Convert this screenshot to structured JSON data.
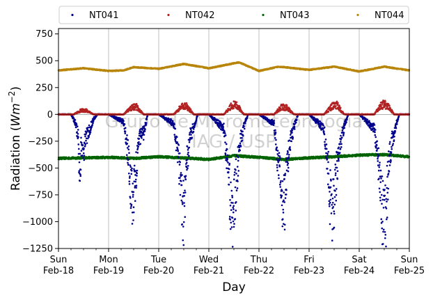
{
  "chart_data": {
    "type": "scatter",
    "xlabel": "Day",
    "ylabel_main": "Radiation (",
    "ylabel_unit": "Wm",
    "ylabel_exp": "−2",
    "ylabel_close": ")",
    "ylim": [
      -1250,
      800
    ],
    "yticks": [
      {
        "value": 750,
        "label": "750"
      },
      {
        "value": 500,
        "label": "500"
      },
      {
        "value": 250,
        "label": "250"
      },
      {
        "value": 0,
        "label": "0"
      },
      {
        "value": -250,
        "label": "−250"
      },
      {
        "value": -500,
        "label": "−500"
      },
      {
        "value": -750,
        "label": "−750"
      },
      {
        "value": -1000,
        "label": "−1000"
      },
      {
        "value": -1250,
        "label": "−1250"
      }
    ],
    "xlim_days": [
      0,
      7
    ],
    "xticks": [
      {
        "day": 0,
        "line1": "Sun",
        "line2": "Feb-18"
      },
      {
        "day": 1,
        "line1": "Mon",
        "line2": "Feb-19"
      },
      {
        "day": 2,
        "line1": "Tue",
        "line2": "Feb-20"
      },
      {
        "day": 3,
        "line1": "Wed",
        "line2": "Feb-21"
      },
      {
        "day": 4,
        "line1": "Thu",
        "line2": "Feb-22"
      },
      {
        "day": 5,
        "line1": "Fri",
        "line2": "Feb-23"
      },
      {
        "day": 6,
        "line1": "Sat",
        "line2": "Feb-24"
      },
      {
        "day": 7,
        "line1": "Sun",
        "line2": "Feb-25"
      }
    ],
    "grid": "vertical",
    "legend_position": "top",
    "watermark_line1": "Grupo de Micrometeorologia",
    "watermark_line2": "IAG / USP",
    "series": [
      {
        "name": "NT041",
        "color": "#00008b",
        "values": [
          {
            "day": 0.0,
            "y": 0
          },
          {
            "day": 0.25,
            "y": 0
          },
          {
            "day": 0.33,
            "y": -80
          },
          {
            "day": 0.4,
            "y": -250
          },
          {
            "day": 0.42,
            "y": -700
          },
          {
            "day": 0.46,
            "y": -300
          },
          {
            "day": 0.5,
            "y": -400
          },
          {
            "day": 0.55,
            "y": -250
          },
          {
            "day": 0.6,
            "y": -200
          },
          {
            "day": 0.7,
            "y": -50
          },
          {
            "day": 0.78,
            "y": 0
          },
          {
            "day": 1.0,
            "y": 0
          },
          {
            "day": 1.3,
            "y": -80
          },
          {
            "day": 1.4,
            "y": -450
          },
          {
            "day": 1.44,
            "y": -850
          },
          {
            "day": 1.5,
            "y": -950
          },
          {
            "day": 1.55,
            "y": -600
          },
          {
            "day": 1.6,
            "y": -250
          },
          {
            "day": 1.7,
            "y": -200
          },
          {
            "day": 1.78,
            "y": 0
          },
          {
            "day": 2.0,
            "y": 0
          },
          {
            "day": 2.3,
            "y": -100
          },
          {
            "day": 2.4,
            "y": -500
          },
          {
            "day": 2.45,
            "y": -800
          },
          {
            "day": 2.5,
            "y": -1100
          },
          {
            "day": 2.55,
            "y": -600
          },
          {
            "day": 2.62,
            "y": -250
          },
          {
            "day": 2.72,
            "y": -100
          },
          {
            "day": 2.78,
            "y": 0
          },
          {
            "day": 3.0,
            "y": 0
          },
          {
            "day": 3.3,
            "y": -150
          },
          {
            "day": 3.4,
            "y": -700
          },
          {
            "day": 3.45,
            "y": -1100
          },
          {
            "day": 3.5,
            "y": -1000
          },
          {
            "day": 3.55,
            "y": -700
          },
          {
            "day": 3.62,
            "y": -300
          },
          {
            "day": 3.72,
            "y": -100
          },
          {
            "day": 3.78,
            "y": 0
          },
          {
            "day": 4.0,
            "y": 0
          },
          {
            "day": 4.3,
            "y": -100
          },
          {
            "day": 4.38,
            "y": -500
          },
          {
            "day": 4.45,
            "y": -800
          },
          {
            "day": 4.5,
            "y": -1020
          },
          {
            "day": 4.55,
            "y": -600
          },
          {
            "day": 4.62,
            "y": -300
          },
          {
            "day": 4.72,
            "y": -100
          },
          {
            "day": 4.78,
            "y": 0
          },
          {
            "day": 5.0,
            "y": 0
          },
          {
            "day": 5.3,
            "y": -150
          },
          {
            "day": 5.4,
            "y": -700
          },
          {
            "day": 5.45,
            "y": -1200
          },
          {
            "day": 5.5,
            "y": -900
          },
          {
            "day": 5.55,
            "y": -600
          },
          {
            "day": 5.62,
            "y": -300
          },
          {
            "day": 5.72,
            "y": -100
          },
          {
            "day": 5.78,
            "y": 0
          },
          {
            "day": 6.0,
            "y": 0
          },
          {
            "day": 6.3,
            "y": -150
          },
          {
            "day": 6.4,
            "y": -600
          },
          {
            "day": 6.45,
            "y": -1000
          },
          {
            "day": 6.52,
            "y": -1200
          },
          {
            "day": 6.58,
            "y": -600
          },
          {
            "day": 6.65,
            "y": -300
          },
          {
            "day": 6.74,
            "y": -100
          },
          {
            "day": 6.8,
            "y": 0
          },
          {
            "day": 7.0,
            "y": 0
          }
        ]
      },
      {
        "name": "NT042",
        "color": "#b22222",
        "values": [
          {
            "day": 0.0,
            "y": 0
          },
          {
            "day": 0.3,
            "y": 0
          },
          {
            "day": 0.45,
            "y": 40
          },
          {
            "day": 0.55,
            "y": 40
          },
          {
            "day": 0.7,
            "y": 0
          },
          {
            "day": 1.0,
            "y": 0
          },
          {
            "day": 1.3,
            "y": 0
          },
          {
            "day": 1.45,
            "y": 70
          },
          {
            "day": 1.55,
            "y": 80
          },
          {
            "day": 1.7,
            "y": 0
          },
          {
            "day": 2.0,
            "y": 0
          },
          {
            "day": 2.3,
            "y": 0
          },
          {
            "day": 2.45,
            "y": 80
          },
          {
            "day": 2.55,
            "y": 90
          },
          {
            "day": 2.7,
            "y": 0
          },
          {
            "day": 3.0,
            "y": 0
          },
          {
            "day": 3.3,
            "y": 0
          },
          {
            "day": 3.45,
            "y": 90
          },
          {
            "day": 3.55,
            "y": 100
          },
          {
            "day": 3.7,
            "y": 0
          },
          {
            "day": 4.0,
            "y": 0
          },
          {
            "day": 4.3,
            "y": 0
          },
          {
            "day": 4.45,
            "y": 80
          },
          {
            "day": 4.55,
            "y": 70
          },
          {
            "day": 4.7,
            "y": 0
          },
          {
            "day": 5.0,
            "y": 0
          },
          {
            "day": 5.3,
            "y": 0
          },
          {
            "day": 5.45,
            "y": 80
          },
          {
            "day": 5.55,
            "y": 100
          },
          {
            "day": 5.7,
            "y": 0
          },
          {
            "day": 6.0,
            "y": 0
          },
          {
            "day": 6.3,
            "y": 0
          },
          {
            "day": 6.45,
            "y": 100
          },
          {
            "day": 6.55,
            "y": 100
          },
          {
            "day": 6.7,
            "y": 0
          },
          {
            "day": 7.0,
            "y": 0
          }
        ]
      },
      {
        "name": "NT043",
        "color": "#006400",
        "values": [
          {
            "day": 0.0,
            "y": -410
          },
          {
            "day": 0.5,
            "y": -405
          },
          {
            "day": 1.0,
            "y": -400
          },
          {
            "day": 1.5,
            "y": -410
          },
          {
            "day": 2.0,
            "y": -395
          },
          {
            "day": 2.5,
            "y": -405
          },
          {
            "day": 3.0,
            "y": -420
          },
          {
            "day": 3.5,
            "y": -385
          },
          {
            "day": 4.0,
            "y": -400
          },
          {
            "day": 4.5,
            "y": -420
          },
          {
            "day": 5.0,
            "y": -405
          },
          {
            "day": 5.5,
            "y": -395
          },
          {
            "day": 6.0,
            "y": -380
          },
          {
            "day": 6.5,
            "y": -375
          },
          {
            "day": 7.0,
            "y": -395
          }
        ]
      },
      {
        "name": "NT044",
        "color": "#b8860b",
        "values": [
          {
            "day": 0.0,
            "y": 410
          },
          {
            "day": 0.5,
            "y": 430
          },
          {
            "day": 1.0,
            "y": 405
          },
          {
            "day": 1.3,
            "y": 410
          },
          {
            "day": 1.5,
            "y": 440
          },
          {
            "day": 2.0,
            "y": 425
          },
          {
            "day": 2.5,
            "y": 470
          },
          {
            "day": 3.0,
            "y": 430
          },
          {
            "day": 3.6,
            "y": 485
          },
          {
            "day": 4.0,
            "y": 405
          },
          {
            "day": 4.4,
            "y": 445
          },
          {
            "day": 5.0,
            "y": 415
          },
          {
            "day": 5.5,
            "y": 445
          },
          {
            "day": 6.0,
            "y": 400
          },
          {
            "day": 6.5,
            "y": 445
          },
          {
            "day": 7.0,
            "y": 410
          }
        ]
      }
    ]
  }
}
